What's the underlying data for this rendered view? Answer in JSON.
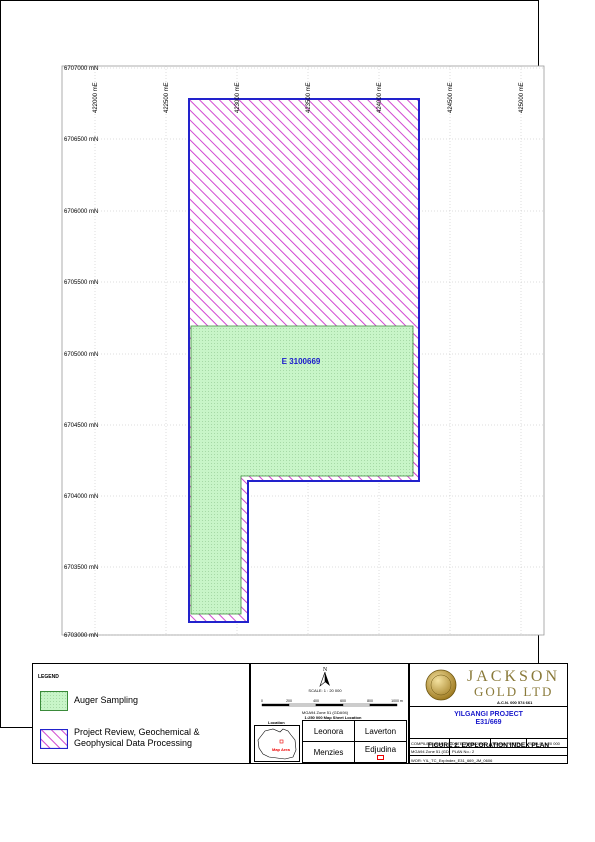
{
  "map": {
    "easting_labels": [
      "422000 mE",
      "422500 mE",
      "423000 mE",
      "423500 mE",
      "424000 mE",
      "424500 mE",
      "425000 mE"
    ],
    "northing_labels": [
      "6707000 mN",
      "6706500 mN",
      "6706000 mN",
      "6705500 mN",
      "6705000 mN",
      "6704500 mN",
      "6704000 mN",
      "6703500 mN",
      "6703000 mN"
    ],
    "tenement_label": "E 3100669",
    "colors": {
      "auger_fill": "#c8f5c8",
      "auger_border": "#3a8a3a",
      "hatch": "#cc33cc",
      "boundary": "#2222cc"
    }
  },
  "legend": {
    "title": "LEGEND",
    "items": [
      {
        "label": "Auger Sampling",
        "icon": "auger-sampling-swatch"
      },
      {
        "label": "Project Review, Geochemical & Geophysical Data Processing",
        "icon": "project-review-hatch-swatch"
      }
    ]
  },
  "scale": {
    "north": "N",
    "scale_text": "SCALE: 1 : 20 000",
    "bar_labels": [
      "0",
      "200",
      "400",
      "600",
      "800",
      "1000 m"
    ],
    "zone_text": "MGA94 Zone 51 (GDA94)",
    "sheet_text": "1:250 000 Map Sheet Location",
    "location_title": "Location",
    "map_area_text": "Map Area",
    "sheets": [
      "Leonora",
      "Laverton",
      "Menzies",
      "Edjudina"
    ]
  },
  "company": {
    "name_line1": "JACKSON",
    "name_line2": "GOLD LTD",
    "acn": "A.C.N. 000 574 661",
    "project": "YILGANGI PROJECT",
    "tenement": "E31/669",
    "figure_title": "FIGURE 2. EXPLORATION INDEX PLAN",
    "info": {
      "compiled": "COMPILED: JDM",
      "date": "DATE: 16/08/2006",
      "location": "LOCN: PERTH",
      "scale": "SCALE: 1:20 000",
      "datum": "MGA94 Zone 51 (GDA94)",
      "plan_no": "PLAN No.: 2",
      "work_file": "WOR: YIL_TC_ExpIndex_E31_669_JM_0606"
    }
  }
}
